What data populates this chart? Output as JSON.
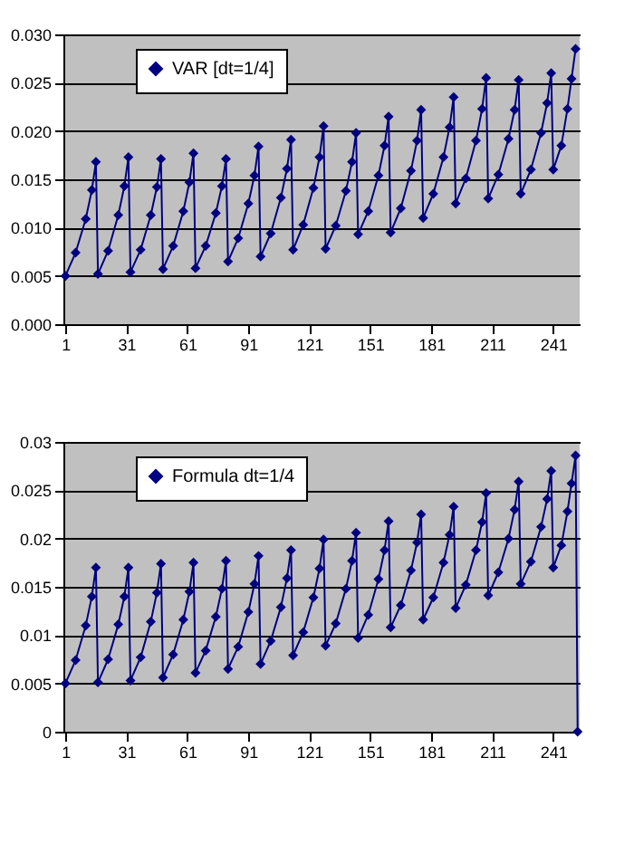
{
  "chart_data": [
    {
      "type": "line",
      "legend": "top left",
      "marker": "diamond",
      "grid": "y",
      "xlim": [
        0,
        254
      ],
      "xticks": [
        1,
        31,
        61,
        91,
        121,
        151,
        181,
        211,
        241
      ],
      "ylim": [
        0,
        0.03
      ],
      "yticks": [
        {
          "value": 0,
          "label": "0.000"
        },
        {
          "value": 0.005,
          "label": "0.005"
        },
        {
          "value": 0.01,
          "label": "0.010"
        },
        {
          "value": 0.015,
          "label": "0.015"
        },
        {
          "value": 0.02,
          "label": "0.020"
        },
        {
          "value": 0.025,
          "label": "0.025"
        },
        {
          "value": 0.03,
          "label": "0.030"
        }
      ],
      "series": [
        {
          "name": "VAR [dt=1/4]",
          "color": "#000080",
          "x": [
            1,
            6,
            11,
            14,
            16,
            17,
            22,
            27,
            30,
            32,
            33,
            38,
            43,
            46,
            48,
            49,
            54,
            59,
            62,
            64,
            65,
            70,
            75,
            78,
            80,
            81,
            86,
            91,
            94,
            96,
            97,
            102,
            107,
            110,
            112,
            113,
            118,
            123,
            126,
            128,
            129,
            134,
            139,
            142,
            144,
            145,
            150,
            155,
            158,
            160,
            161,
            166,
            171,
            174,
            176,
            177,
            182,
            187,
            190,
            192,
            193,
            198,
            203,
            206,
            208,
            209,
            214,
            219,
            222,
            224,
            225,
            230,
            235,
            238,
            240,
            241,
            245,
            248,
            250,
            252
          ],
          "values": [
            0.005,
            0.0074,
            0.0109,
            0.0139,
            0.0168,
            0.0052,
            0.0076,
            0.0113,
            0.0143,
            0.0173,
            0.0054,
            0.0077,
            0.0113,
            0.0142,
            0.0171,
            0.0057,
            0.0081,
            0.0117,
            0.0147,
            0.0177,
            0.0058,
            0.0081,
            0.0115,
            0.0143,
            0.0171,
            0.0065,
            0.0089,
            0.0125,
            0.0154,
            0.0184,
            0.007,
            0.0094,
            0.0131,
            0.0161,
            0.0191,
            0.0077,
            0.0103,
            0.0141,
            0.0173,
            0.0205,
            0.0078,
            0.0102,
            0.0138,
            0.0168,
            0.0198,
            0.0093,
            0.0117,
            0.0154,
            0.0185,
            0.0215,
            0.0095,
            0.012,
            0.0159,
            0.019,
            0.0222,
            0.011,
            0.0135,
            0.0173,
            0.0204,
            0.0235,
            0.0125,
            0.0151,
            0.019,
            0.0223,
            0.0255,
            0.013,
            0.0155,
            0.0192,
            0.0222,
            0.0253,
            0.0135,
            0.016,
            0.0198,
            0.0229,
            0.026,
            0.016,
            0.0185,
            0.0223,
            0.0254,
            0.0285
          ]
        }
      ]
    },
    {
      "type": "line",
      "legend": "top left",
      "marker": "diamond",
      "grid": "y",
      "xlim": [
        0,
        254
      ],
      "xticks": [
        1,
        31,
        61,
        91,
        121,
        151,
        181,
        211,
        241
      ],
      "ylim": [
        0,
        0.03
      ],
      "yticks": [
        0,
        0.005,
        0.01,
        0.015,
        0.02,
        0.025,
        0.03
      ],
      "series": [
        {
          "name": "Formula dt=1/4",
          "color": "#000080",
          "x": [
            1,
            6,
            11,
            14,
            16,
            17,
            22,
            27,
            30,
            32,
            33,
            38,
            43,
            46,
            48,
            49,
            54,
            59,
            62,
            64,
            65,
            70,
            75,
            78,
            80,
            81,
            86,
            91,
            94,
            96,
            97,
            102,
            107,
            110,
            112,
            113,
            118,
            123,
            126,
            128,
            129,
            134,
            139,
            142,
            144,
            145,
            150,
            155,
            158,
            160,
            161,
            166,
            171,
            174,
            176,
            177,
            182,
            187,
            190,
            192,
            193,
            198,
            203,
            206,
            208,
            209,
            214,
            219,
            222,
            224,
            225,
            230,
            235,
            238,
            240,
            241,
            245,
            248,
            250,
            252,
            253
          ],
          "values": [
            0.005,
            0.0074,
            0.011,
            0.014,
            0.017,
            0.0051,
            0.0075,
            0.0111,
            0.014,
            0.017,
            0.0053,
            0.0077,
            0.0114,
            0.0144,
            0.0174,
            0.0056,
            0.008,
            0.0116,
            0.0145,
            0.0175,
            0.0061,
            0.0084,
            0.0119,
            0.0148,
            0.0177,
            0.0065,
            0.0088,
            0.0124,
            0.0153,
            0.0182,
            0.007,
            0.0094,
            0.0129,
            0.0159,
            0.0188,
            0.0079,
            0.0103,
            0.0139,
            0.0169,
            0.0199,
            0.0089,
            0.0112,
            0.0148,
            0.0177,
            0.0206,
            0.0097,
            0.0121,
            0.0158,
            0.0188,
            0.0218,
            0.0108,
            0.0131,
            0.0167,
            0.0196,
            0.0225,
            0.0116,
            0.0139,
            0.0175,
            0.0204,
            0.0233,
            0.0128,
            0.0152,
            0.0188,
            0.0217,
            0.0247,
            0.0141,
            0.0165,
            0.02,
            0.023,
            0.0259,
            0.0153,
            0.0176,
            0.0212,
            0.0241,
            0.027,
            0.017,
            0.0193,
            0.0228,
            0.0257,
            0.0286,
            0
          ]
        }
      ]
    }
  ]
}
